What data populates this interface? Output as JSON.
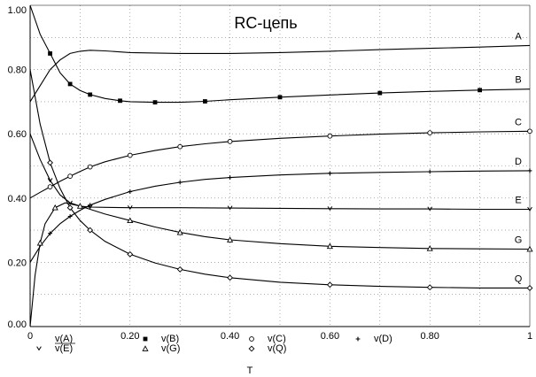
{
  "chart_data": {
    "type": "line",
    "title": "RC-цепь",
    "xlabel": "T",
    "ylabel": "",
    "xlim": [
      0,
      1
    ],
    "ylim": [
      0,
      1
    ],
    "x_ticks": [
      0,
      0.2,
      0.4,
      0.6,
      0.8,
      1
    ],
    "x_tick_labels": [
      "0",
      "0.20",
      "0.40",
      "0.60",
      "0.80",
      "1"
    ],
    "y_ticks": [
      0,
      0.2,
      0.4,
      0.6,
      0.8,
      1
    ],
    "y_tick_labels": [
      "0.00",
      "0.20",
      "0.40",
      "0.60",
      "0.80",
      "1.00"
    ],
    "grid": "dotted",
    "legend_position": "bottom",
    "line_color": "#000000",
    "series": [
      {
        "name": "v(A)",
        "label": "A",
        "marker": "none",
        "x": [
          0,
          0.02,
          0.04,
          0.06,
          0.08,
          0.1,
          0.12,
          0.15,
          0.2,
          0.3,
          0.4,
          0.5,
          0.6,
          0.7,
          0.8,
          0.9,
          1.0
        ],
        "y": [
          0.7,
          0.75,
          0.8,
          0.83,
          0.85,
          0.857,
          0.86,
          0.858,
          0.853,
          0.85,
          0.85,
          0.853,
          0.857,
          0.862,
          0.866,
          0.87,
          0.875
        ]
      },
      {
        "name": "v(B)",
        "label": "B",
        "marker": "square",
        "x": [
          0,
          0.02,
          0.04,
          0.06,
          0.08,
          0.1,
          0.12,
          0.15,
          0.18,
          0.2,
          0.25,
          0.3,
          0.35,
          0.4,
          0.5,
          0.6,
          0.7,
          0.8,
          0.9,
          1.0
        ],
        "y": [
          1.0,
          0.91,
          0.85,
          0.79,
          0.755,
          0.735,
          0.722,
          0.71,
          0.703,
          0.7,
          0.698,
          0.698,
          0.701,
          0.706,
          0.714,
          0.721,
          0.727,
          0.732,
          0.736,
          0.739
        ]
      },
      {
        "name": "v(C)",
        "label": "C",
        "marker": "circle",
        "x": [
          0,
          0.02,
          0.04,
          0.06,
          0.08,
          0.1,
          0.12,
          0.15,
          0.2,
          0.25,
          0.3,
          0.35,
          0.4,
          0.5,
          0.6,
          0.7,
          0.8,
          0.9,
          1.0
        ],
        "y": [
          0.4,
          0.418,
          0.435,
          0.452,
          0.468,
          0.483,
          0.497,
          0.513,
          0.533,
          0.548,
          0.56,
          0.569,
          0.576,
          0.586,
          0.593,
          0.599,
          0.603,
          0.606,
          0.608
        ]
      },
      {
        "name": "v(D)",
        "label": "D",
        "marker": "plus",
        "x": [
          0,
          0.02,
          0.04,
          0.06,
          0.08,
          0.1,
          0.12,
          0.15,
          0.2,
          0.25,
          0.3,
          0.35,
          0.4,
          0.5,
          0.6,
          0.7,
          0.8,
          0.9,
          1.0
        ],
        "y": [
          0.2,
          0.25,
          0.29,
          0.32,
          0.343,
          0.362,
          0.378,
          0.396,
          0.42,
          0.437,
          0.449,
          0.458,
          0.464,
          0.472,
          0.477,
          0.48,
          0.482,
          0.484,
          0.485
        ]
      },
      {
        "name": "v(E)",
        "label": "E",
        "marker": "chevron",
        "x": [
          0,
          0.02,
          0.04,
          0.06,
          0.08,
          0.1,
          0.12,
          0.15,
          0.2,
          0.3,
          0.4,
          0.5,
          0.6,
          0.7,
          0.8,
          0.9,
          1.0
        ],
        "y": [
          0.6,
          0.52,
          0.455,
          0.41,
          0.385,
          0.375,
          0.372,
          0.371,
          0.37,
          0.37,
          0.369,
          0.368,
          0.367,
          0.366,
          0.366,
          0.365,
          0.365
        ]
      },
      {
        "name": "v(G)",
        "label": "G",
        "marker": "triangle",
        "x": [
          0,
          0.01,
          0.02,
          0.03,
          0.05,
          0.07,
          0.1,
          0.15,
          0.2,
          0.25,
          0.3,
          0.35,
          0.4,
          0.5,
          0.6,
          0.7,
          0.8,
          0.9,
          1.0
        ],
        "y": [
          0.0,
          0.16,
          0.26,
          0.32,
          0.37,
          0.385,
          0.375,
          0.35,
          0.33,
          0.31,
          0.293,
          0.28,
          0.27,
          0.258,
          0.25,
          0.246,
          0.243,
          0.242,
          0.241
        ]
      },
      {
        "name": "v(Q)",
        "label": "Q",
        "marker": "diamond",
        "x": [
          0,
          0.02,
          0.04,
          0.06,
          0.08,
          0.1,
          0.12,
          0.15,
          0.2,
          0.25,
          0.3,
          0.35,
          0.4,
          0.5,
          0.6,
          0.7,
          0.8,
          0.9,
          1.0
        ],
        "y": [
          0.8,
          0.63,
          0.51,
          0.43,
          0.37,
          0.33,
          0.3,
          0.265,
          0.225,
          0.198,
          0.178,
          0.163,
          0.152,
          0.138,
          0.13,
          0.125,
          0.122,
          0.12,
          0.12
        ]
      }
    ]
  }
}
